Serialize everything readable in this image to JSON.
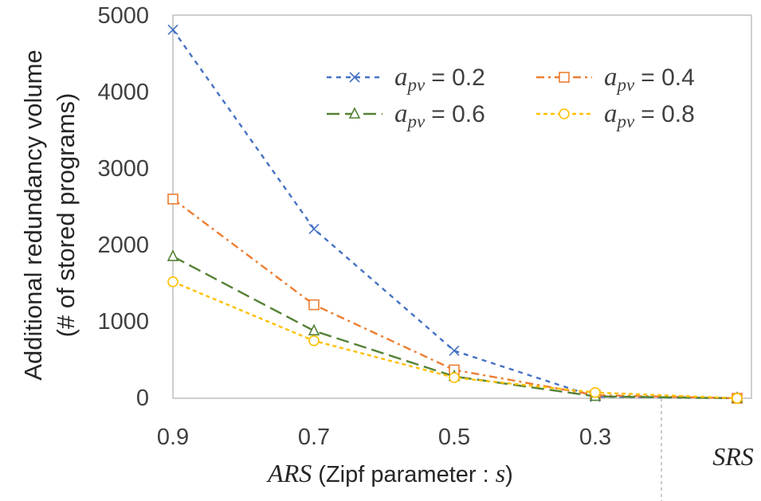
{
  "chart_data": {
    "type": "line",
    "title": "",
    "x_categories": [
      "0.9",
      "0.7",
      "0.5",
      "0.3",
      "SRS"
    ],
    "xlabel": {
      "prefix": "ARS",
      "text": " (Zipf parameter : ",
      "var": "s",
      "suffix": ")"
    },
    "ylabel": [
      "Additional redundancy volume",
      "(# of stored programs)"
    ],
    "ylim": [
      0,
      5000
    ],
    "yticks": [
      "0",
      "1000",
      "2000",
      "3000",
      "4000",
      "5000"
    ],
    "grid": false,
    "legend_position": "top-right",
    "series": [
      {
        "name": "a_pv = 0.2",
        "param": "a",
        "sub": "pv",
        "eq": "= 0.2",
        "color": "#4472C4",
        "marker": "x",
        "dash": "6,6",
        "values": [
          4810,
          2210,
          620,
          20,
          0
        ]
      },
      {
        "name": "a_pv = 0.4",
        "param": "a",
        "sub": "pv",
        "eq": "= 0.4",
        "color": "#ED7D31",
        "marker": "square",
        "dash": "10,5,3,5",
        "values": [
          2600,
          1220,
          370,
          40,
          0
        ]
      },
      {
        "name": "a_pv = 0.6",
        "param": "a",
        "sub": "pv",
        "eq": "= 0.6",
        "color": "#548235",
        "marker": "triangle",
        "dash": "16,7",
        "values": [
          1850,
          880,
          285,
          25,
          0
        ]
      },
      {
        "name": "a_pv = 0.8",
        "param": "a",
        "sub": "pv",
        "eq": "= 0.8",
        "color": "#FFC000",
        "marker": "circle",
        "dash": "5,4",
        "values": [
          1520,
          750,
          270,
          75,
          0
        ]
      }
    ],
    "separator_before": "SRS"
  }
}
